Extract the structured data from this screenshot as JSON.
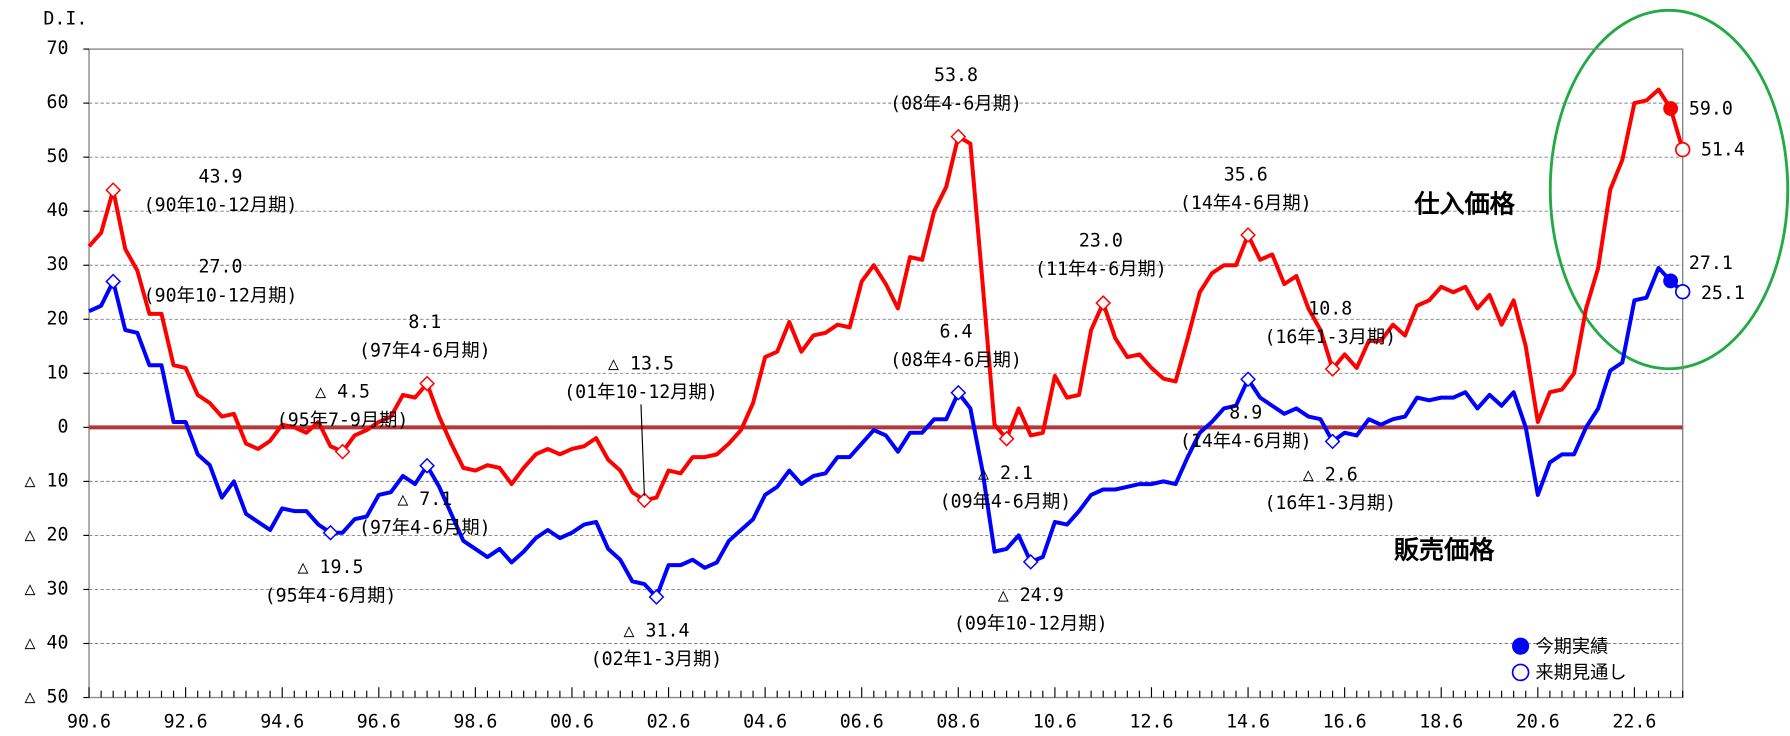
{
  "chart_data": {
    "type": "line",
    "y_label": "D.I.",
    "categories": [
      "90.6",
      null,
      null,
      null,
      null,
      null,
      null,
      null,
      "92.6",
      null,
      null,
      null,
      null,
      null,
      null,
      null,
      "94.6",
      null,
      null,
      null,
      null,
      null,
      null,
      null,
      "96.6",
      null,
      null,
      null,
      null,
      null,
      null,
      null,
      "98.6",
      null,
      null,
      null,
      null,
      null,
      null,
      null,
      "00.6",
      null,
      null,
      null,
      null,
      null,
      null,
      null,
      "02.6",
      null,
      null,
      null,
      null,
      null,
      null,
      null,
      "04.6",
      null,
      null,
      null,
      null,
      null,
      null,
      null,
      "06.6",
      null,
      null,
      null,
      null,
      null,
      null,
      null,
      "08.6",
      null,
      null,
      null,
      null,
      null,
      null,
      null,
      "10.6",
      null,
      null,
      null,
      null,
      null,
      null,
      null,
      "12.6",
      null,
      null,
      null,
      null,
      null,
      null,
      null,
      "14.6",
      null,
      null,
      null,
      null,
      null,
      null,
      null,
      "16.6",
      null,
      null,
      null,
      null,
      null,
      null,
      null,
      "18.6",
      null,
      null,
      null,
      null,
      null,
      null,
      null,
      "20.6",
      null,
      null,
      null,
      null,
      null,
      null,
      null,
      "22.6",
      null,
      null,
      null,
      null
    ],
    "series": [
      {
        "name": "仕入価格",
        "color": "#ff0000",
        "values": [
          33.5,
          36,
          43.9,
          33,
          29,
          21,
          21,
          11.5,
          11,
          6,
          4.5,
          2,
          2.5,
          -3,
          -4,
          -2.5,
          0.5,
          0,
          -1,
          1,
          -3.5,
          -4.5,
          -1.5,
          -0.5,
          1,
          2,
          6,
          5.5,
          8.1,
          2,
          -3,
          -7.5,
          -8,
          -7,
          -7.5,
          -10.5,
          -7.5,
          -5,
          -4,
          -5,
          -4,
          -3.5,
          -2,
          -6,
          -8,
          -12,
          -13.5,
          -13,
          -8,
          -8.5,
          -5.5,
          -5.5,
          -5,
          -3,
          -0.5,
          4.5,
          13,
          14,
          19.5,
          14,
          17,
          17.5,
          19,
          18.5,
          27,
          30,
          26.5,
          22,
          31.5,
          31,
          40,
          44.5,
          53.8,
          52.5,
          27,
          0.5,
          -2.1,
          3.5,
          -1.5,
          -1,
          9.5,
          5.5,
          6,
          18,
          23,
          16.5,
          13,
          13.5,
          11,
          9,
          8.5,
          16.5,
          25,
          28.5,
          30,
          30,
          35.6,
          31,
          32,
          26.5,
          28,
          22,
          18,
          10.8,
          13.5,
          11,
          16,
          16,
          19,
          17,
          22.5,
          23.5,
          26,
          25,
          26,
          22,
          24.5,
          19,
          23.5,
          15,
          1,
          6.5,
          7,
          10,
          22,
          29.5,
          44,
          49.5,
          60,
          60.5,
          62.5,
          59,
          51.4
        ],
        "value_labels": [
          null,
          null,
          "43.9",
          null,
          null,
          null,
          null,
          null,
          null,
          null,
          null,
          null,
          null,
          null,
          null,
          null,
          null,
          null,
          null,
          null,
          null,
          "△ 4.5",
          null,
          null,
          null,
          null,
          null,
          null,
          "8.1",
          null,
          null,
          null,
          null,
          null,
          null,
          null,
          null,
          null,
          null,
          null,
          null,
          null,
          null,
          null,
          null,
          null,
          "△ 13.5",
          null,
          null,
          null,
          null,
          null,
          null,
          null,
          null,
          null,
          null,
          null,
          null,
          null,
          null,
          null,
          null,
          null,
          null,
          null,
          null,
          null,
          null,
          null,
          null,
          null,
          "53.8",
          null,
          null,
          null,
          "△ 2.1",
          null,
          null,
          null,
          null,
          null,
          null,
          null,
          "23.0",
          null,
          null,
          null,
          null,
          null,
          null,
          null,
          null,
          null,
          null,
          null,
          "35.6",
          null,
          null,
          null,
          null,
          null,
          null,
          "10.8",
          null,
          null,
          null,
          null,
          null,
          null,
          null,
          null,
          null,
          null,
          null,
          null,
          null,
          null,
          null,
          null,
          null,
          null,
          null,
          null,
          null,
          null,
          null,
          null,
          null,
          null,
          null,
          "59.0",
          "51.4"
        ],
        "periods": [
          null,
          null,
          "(90年10-12月期)",
          null,
          null,
          null,
          null,
          null,
          null,
          null,
          null,
          null,
          null,
          null,
          null,
          null,
          null,
          null,
          null,
          null,
          null,
          "(95年7-9月期)",
          null,
          null,
          null,
          null,
          null,
          null,
          "(97年4-6月期)",
          null,
          null,
          null,
          null,
          null,
          null,
          null,
          null,
          null,
          null,
          null,
          null,
          null,
          null,
          null,
          null,
          null,
          "(01年10-12月期)",
          null,
          null,
          null,
          null,
          null,
          null,
          null,
          null,
          null,
          null,
          null,
          null,
          null,
          null,
          null,
          null,
          null,
          null,
          null,
          null,
          null,
          null,
          null,
          null,
          null,
          "(08年4-6月期)",
          null,
          null,
          null,
          "(09年4-6月期)",
          null,
          null,
          null,
          null,
          null,
          null,
          null,
          "(11年4-6月期)",
          null,
          null,
          null,
          null,
          null,
          null,
          null,
          null,
          null,
          null,
          null,
          "(14年4-6月期)",
          null,
          null,
          null,
          null,
          null,
          null,
          "(16年1-3月期)",
          null,
          null,
          null,
          null,
          null,
          null,
          null,
          null,
          null,
          null,
          null,
          null,
          null,
          null,
          null,
          null,
          null,
          null,
          null,
          null,
          null,
          null,
          null,
          null,
          null,
          null,
          null,
          null,
          null
        ]
      },
      {
        "name": "販売価格",
        "color": "#0000ff",
        "values": [
          21.5,
          22.5,
          27,
          18,
          17.5,
          11.5,
          11.5,
          1,
          1,
          -5,
          -7,
          -13,
          -10,
          -16,
          -17.5,
          -19,
          -15,
          -15.5,
          -15.5,
          -18,
          -19.5,
          -19.5,
          -17,
          -16.5,
          -12.5,
          -12,
          -9,
          -10.5,
          -7.1,
          -11,
          -16,
          -21,
          -22.5,
          -24,
          -22.5,
          -25,
          -23,
          -20.5,
          -19,
          -20.5,
          -19.5,
          -18,
          -17.5,
          -22.5,
          -24.5,
          -28.5,
          -29,
          -31.4,
          -25.5,
          -25.5,
          -24.5,
          -26,
          -25,
          -21,
          -19,
          -17,
          -12.5,
          -11,
          -8,
          -10.5,
          -9,
          -8.5,
          -5.5,
          -5.5,
          -3,
          -0.5,
          -1.5,
          -4.5,
          -1,
          -1,
          1.5,
          1.5,
          6.4,
          3.5,
          -8,
          -23,
          -22.5,
          -20,
          -24.9,
          -24,
          -17.5,
          -18,
          -15.5,
          -12.5,
          -11.5,
          -11.5,
          -11,
          -10.5,
          -10.5,
          -10,
          -10.5,
          -5.5,
          -1,
          1,
          3.5,
          4,
          8.9,
          5.5,
          4,
          2.5,
          3.5,
          2,
          1.5,
          -2.6,
          -1,
          -1.5,
          1.5,
          0.5,
          1.5,
          2,
          5.5,
          5,
          5.5,
          5.5,
          6.5,
          3.5,
          6,
          4,
          6.5,
          0,
          -12.5,
          -6.5,
          -5,
          -5,
          0,
          3.5,
          10.5,
          12,
          23.5,
          24,
          29.5,
          27.1,
          25.1
        ],
        "value_labels": [
          null,
          null,
          "27.0",
          null,
          null,
          null,
          null,
          null,
          null,
          null,
          null,
          null,
          null,
          null,
          null,
          null,
          null,
          null,
          null,
          null,
          "△ 19.5",
          null,
          null,
          null,
          null,
          null,
          null,
          null,
          "△ 7.1",
          null,
          null,
          null,
          null,
          null,
          null,
          null,
          null,
          null,
          null,
          null,
          null,
          null,
          null,
          null,
          null,
          null,
          null,
          "△ 31.4",
          null,
          null,
          null,
          null,
          null,
          null,
          null,
          null,
          null,
          null,
          null,
          null,
          null,
          null,
          null,
          null,
          null,
          null,
          null,
          null,
          null,
          null,
          null,
          null,
          "6.4",
          null,
          null,
          null,
          null,
          null,
          "△ 24.9",
          null,
          null,
          null,
          null,
          null,
          null,
          null,
          null,
          null,
          null,
          null,
          null,
          null,
          null,
          null,
          null,
          null,
          "8.9",
          null,
          null,
          null,
          null,
          null,
          null,
          "△ 2.6",
          null,
          null,
          null,
          null,
          null,
          null,
          null,
          null,
          null,
          null,
          null,
          null,
          null,
          null,
          null,
          null,
          null,
          null,
          null,
          null,
          null,
          null,
          null,
          null,
          null,
          null,
          null,
          "27.1",
          "25.1"
        ],
        "periods": [
          null,
          null,
          "(90年10-12月期)",
          null,
          null,
          null,
          null,
          null,
          null,
          null,
          null,
          null,
          null,
          null,
          null,
          null,
          null,
          null,
          null,
          null,
          "(95年4-6月期)",
          null,
          null,
          null,
          null,
          null,
          null,
          null,
          "(97年4-6月期)",
          null,
          null,
          null,
          null,
          null,
          null,
          null,
          null,
          null,
          null,
          null,
          null,
          null,
          null,
          null,
          null,
          null,
          null,
          "(02年1-3月期)",
          null,
          null,
          null,
          null,
          null,
          null,
          null,
          null,
          null,
          null,
          null,
          null,
          null,
          null,
          null,
          null,
          null,
          null,
          null,
          null,
          null,
          null,
          null,
          null,
          "(08年4-6月期)",
          null,
          null,
          null,
          null,
          null,
          "(09年10-12月期)",
          null,
          null,
          null,
          null,
          null,
          null,
          null,
          null,
          null,
          null,
          null,
          null,
          null,
          null,
          null,
          null,
          null,
          "(14年4-6月期)",
          null,
          null,
          null,
          null,
          null,
          null,
          "(16年1-3月期)",
          null,
          null,
          null,
          null,
          null,
          null,
          null,
          null,
          null,
          null,
          null,
          null,
          null,
          null,
          null,
          null,
          null,
          null,
          null,
          null,
          null,
          null,
          null,
          null,
          null,
          null,
          null,
          null,
          null
        ]
      }
    ],
    "legend": [
      "今期実績",
      "来期見通し"
    ],
    "ylim": [
      -50,
      70
    ],
    "yticks": [
      70,
      60,
      50,
      40,
      30,
      20,
      10,
      0,
      {
        "value": -10,
        "label": "△ 10"
      },
      {
        "value": -20,
        "label": "△ 20"
      },
      {
        "value": -30,
        "label": "△ 30"
      },
      {
        "value": -40,
        "label": "△ 40"
      },
      {
        "value": -50,
        "label": "△ 50"
      }
    ],
    "grid": true
  }
}
